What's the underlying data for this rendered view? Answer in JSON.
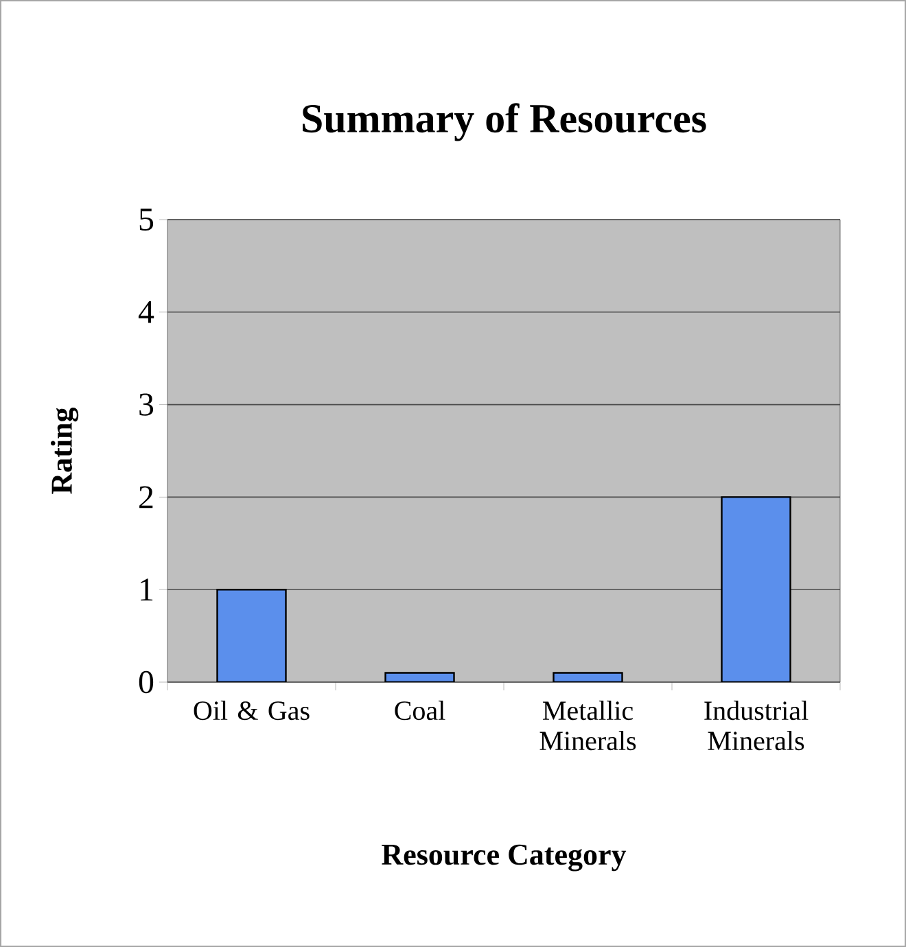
{
  "chart_data": {
    "type": "bar",
    "title": "Summary of Resources",
    "xlabel": "Resource Category",
    "ylabel": "Rating",
    "categories": [
      "Oil & Gas",
      "Coal",
      "Metallic Minerals",
      "Industrial Minerals"
    ],
    "values": [
      1,
      0.1,
      0.1,
      2
    ],
    "color": "#5b8fec",
    "ylim": [
      0,
      5
    ],
    "yticks": [
      0,
      1,
      2,
      3,
      4,
      5
    ],
    "grid": "y"
  }
}
